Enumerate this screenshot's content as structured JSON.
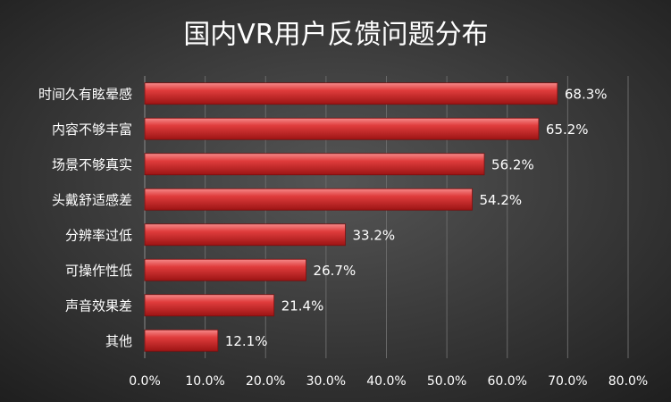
{
  "chart_data": {
    "type": "bar",
    "orientation": "horizontal",
    "title": "国内VR用户反馈问题分布",
    "categories": [
      "时间久有眩晕感",
      "内容不够丰富",
      "场景不够真实",
      "头戴舒适感差",
      "分辨率过低",
      "可操作性低",
      "声音效果差",
      "其他"
    ],
    "values": [
      68.3,
      65.2,
      56.2,
      54.2,
      33.2,
      26.7,
      21.4,
      12.1
    ],
    "value_labels": [
      "68.3%",
      "65.2%",
      "56.2%",
      "54.2%",
      "33.2%",
      "26.7%",
      "21.4%",
      "12.1%"
    ],
    "color": "#e03c3c",
    "xlim": [
      0,
      80
    ],
    "xticks": [
      {
        "value": 0,
        "label": "0.0%"
      },
      {
        "value": 10,
        "label": "10.0%"
      },
      {
        "value": 20,
        "label": "20.0%"
      },
      {
        "value": 30,
        "label": "30.0%"
      },
      {
        "value": 40,
        "label": "40.0%"
      },
      {
        "value": 50,
        "label": "50.0%"
      },
      {
        "value": 60,
        "label": "60.0%"
      },
      {
        "value": 70,
        "label": "70.0%"
      },
      {
        "value": 80,
        "label": "80.0%"
      }
    ],
    "grid": true
  }
}
